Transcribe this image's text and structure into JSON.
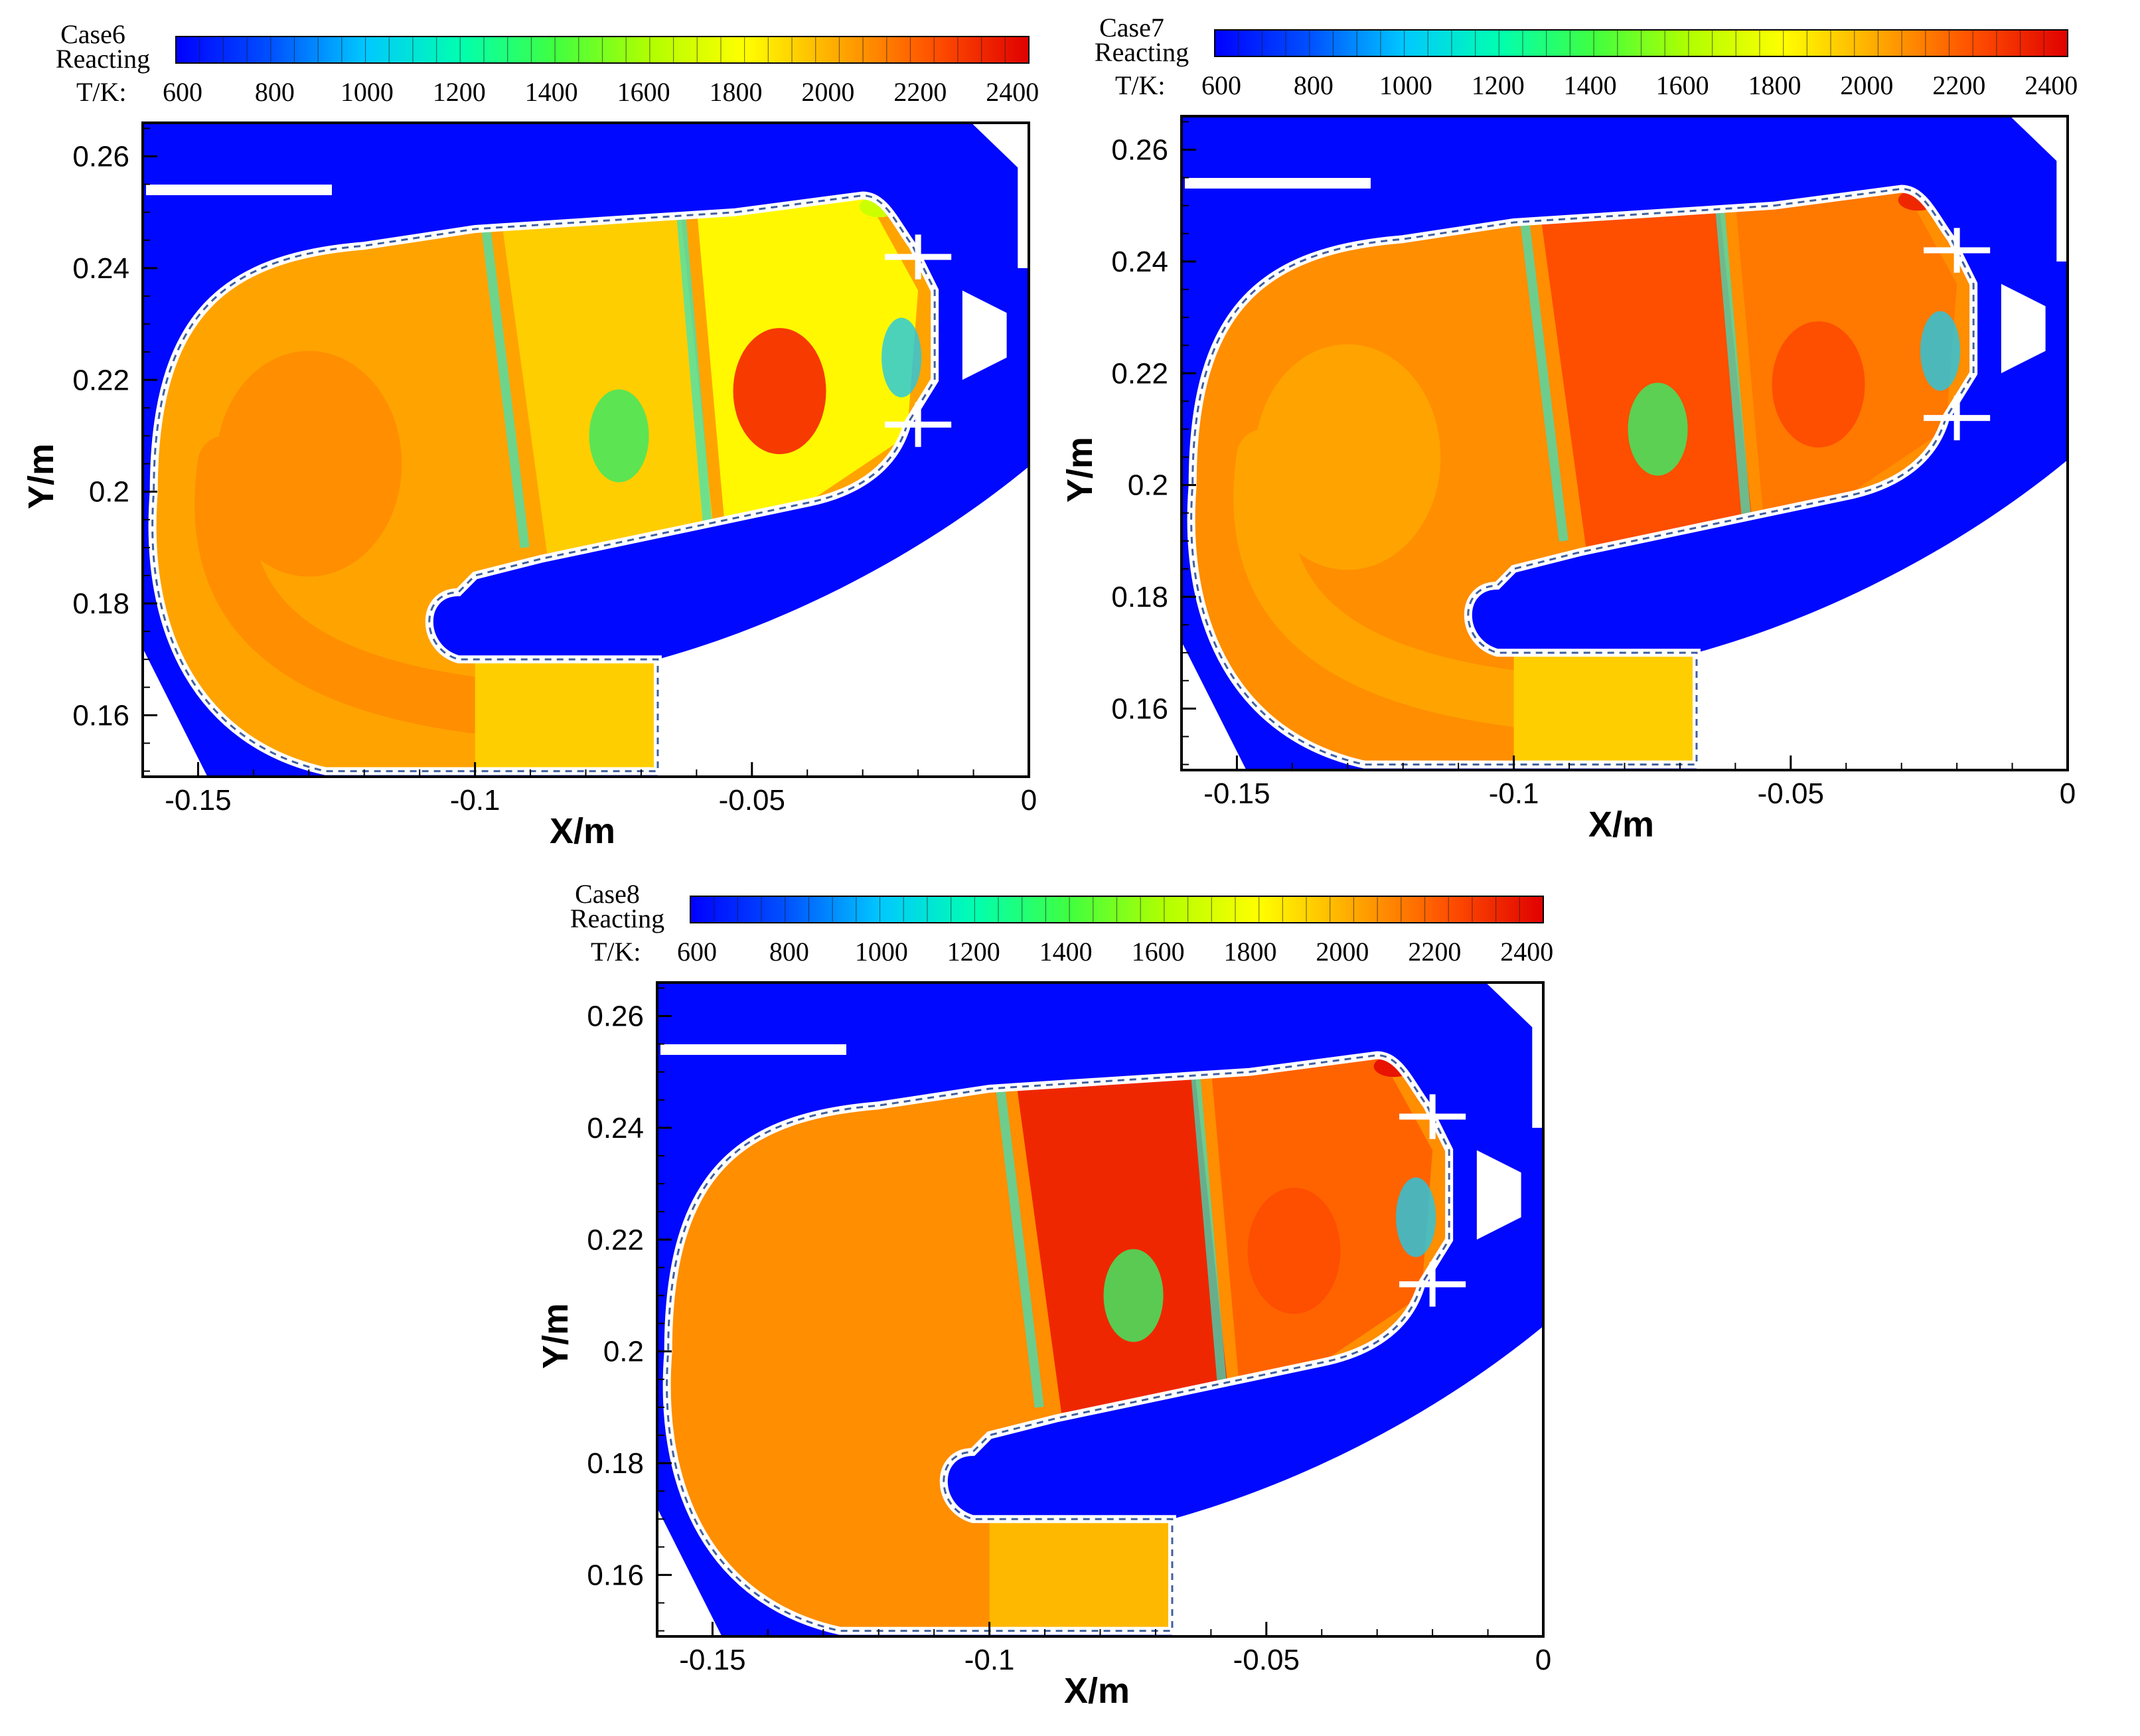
{
  "colormap": {
    "stops": [
      "#0000ff",
      "#0050ff",
      "#00c8ff",
      "#00ffb0",
      "#40ff40",
      "#b0ff00",
      "#ffff00",
      "#ffa800",
      "#ff5000",
      "#e00000"
    ]
  },
  "chart_data": [
    {
      "type": "heatmap",
      "case_label": "Case6",
      "subtitle": "Reacting",
      "colorbar_label": "T/K:",
      "colorbar_ticks": [
        "600",
        "800",
        "1000",
        "1200",
        "1400",
        "1600",
        "1800",
        "2000",
        "2200",
        "2400"
      ],
      "colorbar_range": [
        600,
        2450
      ],
      "xlabel": "X/m",
      "ylabel": "Y/m",
      "xlim": [
        -0.16,
        0
      ],
      "ylim": [
        0.149,
        0.266
      ],
      "x_ticks": [
        "-0.15",
        "-0.1",
        "-0.05",
        "0"
      ],
      "y_ticks": [
        "0.16",
        "0.18",
        "0.2",
        "0.22",
        "0.24",
        "0.26"
      ],
      "zones_T": {
        "background": 620,
        "primary": 2100,
        "mid": 1950,
        "front": 1850,
        "front_core": 2300,
        "liner": 2050,
        "exit": 1950,
        "hot_tip": 1700
      }
    },
    {
      "type": "heatmap",
      "case_label": "Case7",
      "subtitle": "Reacting",
      "colorbar_label": "T/K:",
      "colorbar_ticks": [
        "600",
        "800",
        "1000",
        "1200",
        "1400",
        "1600",
        "1800",
        "2000",
        "2200",
        "2400"
      ],
      "colorbar_range": [
        600,
        2450
      ],
      "xlabel": "X/m",
      "ylabel": "Y/m",
      "xlim": [
        -0.16,
        0
      ],
      "ylim": [
        0.149,
        0.266
      ],
      "x_ticks": [
        "-0.15",
        "-0.1",
        "-0.05",
        "0"
      ],
      "y_ticks": [
        "0.16",
        "0.18",
        "0.2",
        "0.22",
        "0.24",
        "0.26"
      ],
      "zones_T": {
        "background": 620,
        "primary": 2050,
        "mid": 2250,
        "front": 2150,
        "front_core": 2250,
        "liner": 2100,
        "exit": 1950,
        "hot_tip": 2350
      }
    },
    {
      "type": "heatmap",
      "case_label": "Case8",
      "subtitle": "Reacting",
      "colorbar_label": "T/K:",
      "colorbar_ticks": [
        "600",
        "800",
        "1000",
        "1200",
        "1400",
        "1600",
        "1800",
        "2000",
        "2200",
        "2400"
      ],
      "colorbar_range": [
        600,
        2450
      ],
      "xlabel": "X/m",
      "ylabel": "Y/m",
      "xlim": [
        -0.16,
        0
      ],
      "ylim": [
        0.149,
        0.266
      ],
      "x_ticks": [
        "-0.15",
        "-0.1",
        "-0.05",
        "0"
      ],
      "y_ticks": [
        "0.16",
        "0.18",
        "0.2",
        "0.22",
        "0.24",
        "0.26"
      ],
      "zones_T": {
        "background": 620,
        "primary": 2100,
        "mid": 2350,
        "front": 2200,
        "front_core": 2250,
        "liner": 2100,
        "exit": 2000,
        "hot_tip": 2400
      }
    }
  ]
}
